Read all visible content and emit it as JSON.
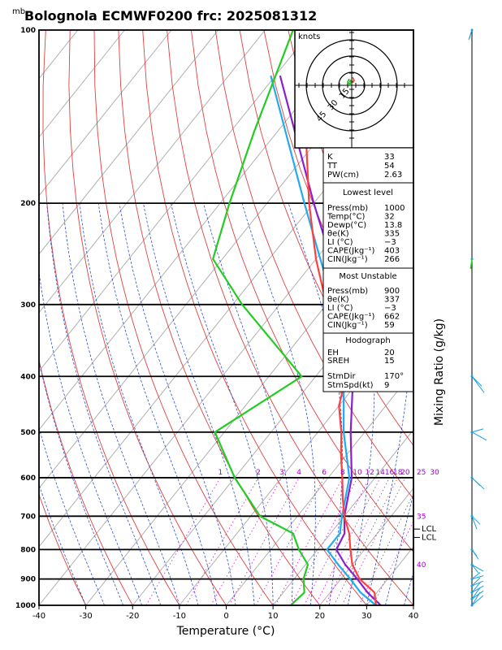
{
  "header": {
    "unit_mb": "mb",
    "title": "Bolognola ECMWF0200  frc: 2025081312"
  },
  "chart_data": {
    "type": "skew-t log-p",
    "xlabel": "Temperature (°C)",
    "ylabel_right": "Mixing Ratio (g/kg)",
    "x_ticks": [
      -40,
      -30,
      -20,
      -10,
      0,
      10,
      20,
      30,
      40
    ],
    "xlim": [
      -40,
      40
    ],
    "p_ticks": [
      100,
      200,
      300,
      400,
      500,
      600,
      700,
      800,
      900,
      1000
    ],
    "plim": [
      1000,
      100
    ],
    "mixing_ratio_labels": [
      "1",
      "2",
      "3",
      "4",
      "6",
      "8",
      "10",
      "12",
      "14",
      "16",
      "18",
      "20",
      "25",
      "30"
    ],
    "mixing_ratio_values": [
      1,
      2,
      3,
      4,
      6,
      8,
      10,
      12,
      14,
      16,
      18,
      20,
      25,
      30
    ],
    "right_labels": [
      {
        "text": "35",
        "p": 700
      },
      {
        "text": "40",
        "p": 850
      }
    ],
    "lcl_labels": [
      {
        "text": "LCL",
        "p": 737
      },
      {
        "text": "LCL",
        "p": 762
      }
    ],
    "temperature": {
      "p": [
        1000,
        950,
        900,
        850,
        800,
        750,
        700,
        650,
        600,
        550,
        500,
        450,
        400,
        350,
        300,
        250,
        200,
        150,
        100
      ],
      "t": [
        32,
        29.5,
        24,
        20,
        17,
        14,
        10,
        6.5,
        3,
        -1,
        -5,
        -10,
        -13.5,
        -21,
        -30,
        -40,
        -51,
        -64,
        -80
      ]
    },
    "dewpoint": {
      "p": [
        1000,
        950,
        900,
        850,
        800,
        750,
        700,
        600,
        500,
        400,
        300,
        250,
        200,
        150,
        100
      ],
      "t": [
        13.8,
        14.5,
        12,
        10.5,
        6,
        2,
        -8,
        -20,
        -32,
        -23,
        -48,
        -62,
        -68,
        -75,
        -84
      ]
    },
    "parcel_virtual": {
      "p": [
        1000,
        950,
        900,
        850,
        800,
        750,
        700,
        600,
        500,
        400,
        300,
        200,
        120
      ],
      "t": [
        33,
        28,
        23.5,
        18.5,
        14,
        13,
        10,
        5,
        -3,
        -12,
        -26,
        -50,
        -79
      ]
    },
    "parcel": {
      "p": [
        1000,
        950,
        900,
        850,
        800,
        750,
        700,
        600,
        500,
        400,
        300,
        200,
        120
      ],
      "t": [
        32,
        26.5,
        22,
        17,
        12,
        12,
        9.5,
        4.5,
        -4.5,
        -14,
        -28.5,
        -52,
        -81
      ]
    },
    "hodograph": {
      "label": "knots",
      "ring_labels": [
        "15",
        "30",
        "45"
      ],
      "ring_values": [
        15,
        30,
        45
      ]
    },
    "wind_barbs_p": [
      100,
      250,
      400,
      500,
      600,
      700,
      800,
      850,
      900,
      925,
      950,
      975,
      1000
    ]
  },
  "indices": {
    "rows1": [
      {
        "label": "K",
        "value": "33"
      },
      {
        "label": "TT",
        "value": "54"
      },
      {
        "label": "PW(cm)",
        "value": "2.63"
      }
    ],
    "lowest_title": "Lowest level",
    "lowest": [
      {
        "label": "Press(mb)",
        "value": "1000"
      },
      {
        "label": "Temp(°C)",
        "value": "32"
      },
      {
        "label": "Dewp(°C)",
        "value": "13.8"
      },
      {
        "label": "θe(K)",
        "value": "335"
      },
      {
        "label": "LI (°C)",
        "value": "−3"
      },
      {
        "label": "CAPE(Jkg⁻¹)",
        "value": "403"
      },
      {
        "label": "CIN(Jkg⁻¹)",
        "value": "266"
      }
    ],
    "unstable_title": "Most Unstable",
    "unstable": [
      {
        "label": "Press(mb)",
        "value": "900"
      },
      {
        "label": "θe(K)",
        "value": "337"
      },
      {
        "label": "LI (°C)",
        "value": "−3"
      },
      {
        "label": "CAPE(Jkg⁻¹)",
        "value": "662"
      },
      {
        "label": "CIN(Jkg⁻¹)",
        "value": "59"
      }
    ],
    "hodo_title": "Hodograph",
    "hodo": [
      {
        "label": "EH",
        "value": "20"
      },
      {
        "label": "SREH",
        "value": "15"
      },
      {
        "label": "StmDir",
        "value": "170°"
      },
      {
        "label": "StmSpd(kt)",
        "value": "9"
      }
    ]
  },
  "colors": {
    "temperature": "#ff4040",
    "dewpoint": "#22cc22",
    "parcel": "#22aaee",
    "parcel_virtual": "#8a1fd0",
    "isotherm": "#b0b0b0",
    "dry_adiabat": "#e04040",
    "moist_adiabat": "#3050d0",
    "mixing_ratio": "#cc33cc",
    "barb": "#1aa0e0"
  }
}
